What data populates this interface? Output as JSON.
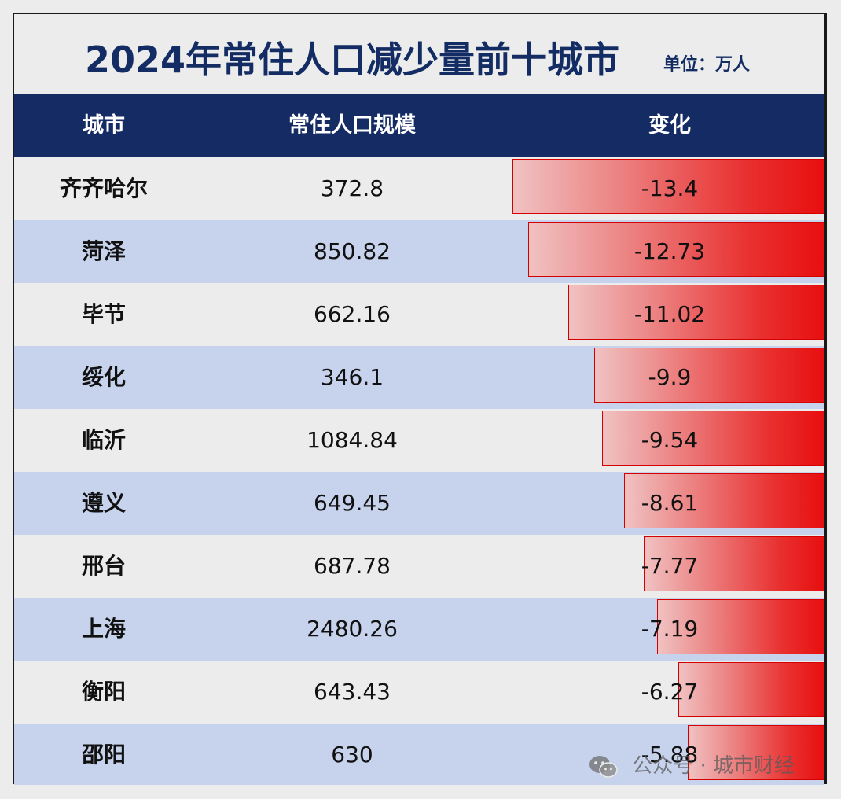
{
  "title": "2024年常住人口减少量前十城市",
  "unit": "单位：万人",
  "headers": [
    "城市",
    "常住人口规模",
    "变化"
  ],
  "colors": {
    "header_bg": "#142b64",
    "title_text": "#132c63",
    "row_light": "#ececec",
    "row_blue": "#c7d3ed",
    "bar_red": "#e80f0f"
  },
  "watermark": {
    "icon": "wechat-icon",
    "text": "公众号 · 城市财经"
  },
  "chart_data": {
    "type": "table",
    "title": "2024年常住人口减少量前十城市",
    "unit": "单位：万人",
    "columns": [
      "城市",
      "常住人口规模",
      "变化"
    ],
    "rows": [
      {
        "city": "齐齐哈尔",
        "population": "372.8",
        "change": "-13.4"
      },
      {
        "city": "菏泽",
        "population": "850.82",
        "change": "-12.73"
      },
      {
        "city": "毕节",
        "population": "662.16",
        "change": "-11.02"
      },
      {
        "city": "绥化",
        "population": "346.1",
        "change": "-9.9"
      },
      {
        "city": "临沂",
        "population": "1084.84",
        "change": "-9.54"
      },
      {
        "city": "遵义",
        "population": "649.45",
        "change": "-8.61"
      },
      {
        "city": "邢台",
        "population": "687.78",
        "change": "-7.77"
      },
      {
        "city": "上海",
        "population": "2480.26",
        "change": "-7.19"
      },
      {
        "city": "衡阳",
        "population": "643.43",
        "change": "-6.27"
      },
      {
        "city": "邵阳",
        "population": "630",
        "change": "-5.88"
      }
    ]
  }
}
